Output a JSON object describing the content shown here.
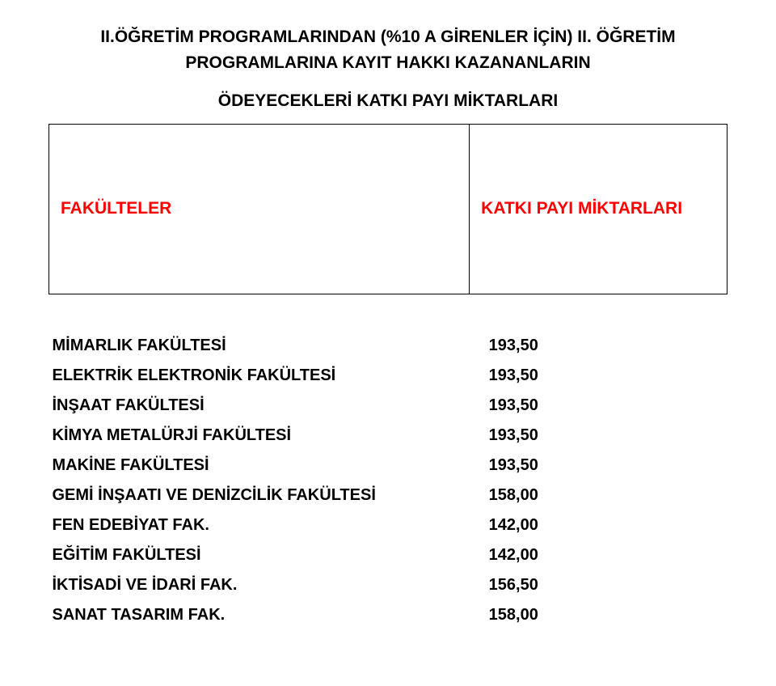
{
  "title": {
    "line1": "II.ÖĞRETİM PROGRAMLARINDAN (%10 A GİRENLER İÇİN) II. ÖĞRETİM",
    "line2": "PROGRAMLARINA KAYIT HAKKI KAZANANLARIN",
    "line3": "ÖDEYECEKLERİ KATKI PAYI MİKTARLARI"
  },
  "headers": {
    "left": "FAKÜLTELER",
    "right": "KATKI PAYI MİKTARLARI"
  },
  "rows": [
    {
      "label": "MİMARLIK FAKÜLTESİ",
      "value": "193,50"
    },
    {
      "label": "ELEKTRİK ELEKTRONİK FAKÜLTESİ",
      "value": "193,50"
    },
    {
      "label": "İNŞAAT FAKÜLTESİ",
      "value": "193,50"
    },
    {
      "label": "KİMYA METALÜRJİ FAKÜLTESİ",
      "value": "193,50"
    },
    {
      "label": "MAKİNE FAKÜLTESİ",
      "value": "193,50"
    },
    {
      "label": "GEMİ İNŞAATI VE DENİZCİLİK FAKÜLTESİ",
      "value": "158,00"
    },
    {
      "label": "FEN EDEBİYAT FAK.",
      "value": "142,00"
    },
    {
      "label": "EĞİTİM FAKÜLTESİ",
      "value": "142,00"
    },
    {
      "label": "İKTİSADİ VE İDARİ FAK.",
      "value": "156,50"
    },
    {
      "label": "SANAT TASARIM FAK.",
      "value": "158,00"
    }
  ]
}
